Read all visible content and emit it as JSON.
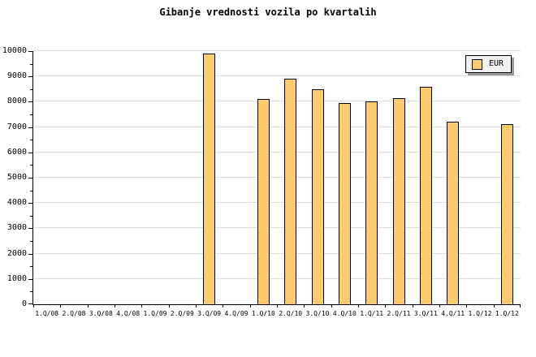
{
  "title": "Gibanje vrednosti vozila po kvartalih",
  "legend": {
    "label": "EUR",
    "position": "top-right"
  },
  "colors": {
    "background": "#FFFFFF",
    "bar_fill": "#FCCB6D",
    "bar_border": "#000000",
    "gridline": "#DCDCDC",
    "axis": "#000000",
    "text": "#000000",
    "legend_bg": "#F1F1F1",
    "legend_shadow": "#999999"
  },
  "chart_data": {
    "type": "bar",
    "title": "Gibanje vrednosti vozila po kvartalih",
    "categories": [
      "1.Q/08",
      "2.Q/08",
      "3.Q/08",
      "4.Q/08",
      "1.Q/09",
      "2.Q/09",
      "3.Q/09",
      "4.Q/09",
      "1.Q/10",
      "2.Q/10",
      "3.Q/10",
      "4.Q/10",
      "1.Q/11",
      "2.Q/11",
      "3.Q/11",
      "4.Q/11",
      "1.Q/12",
      "1.Q/12"
    ],
    "series": [
      {
        "name": "EUR",
        "values": [
          null,
          null,
          null,
          null,
          null,
          null,
          9900,
          null,
          8100,
          8900,
          8500,
          7950,
          8000,
          8150,
          8600,
          7200,
          null,
          7100
        ]
      }
    ],
    "xlabel": "",
    "ylabel": "",
    "ylim": [
      0,
      10000
    ],
    "ytick_step": 1000,
    "yminor_tick_step": 500,
    "grid": "horizontal",
    "legend_position": "top-right"
  }
}
